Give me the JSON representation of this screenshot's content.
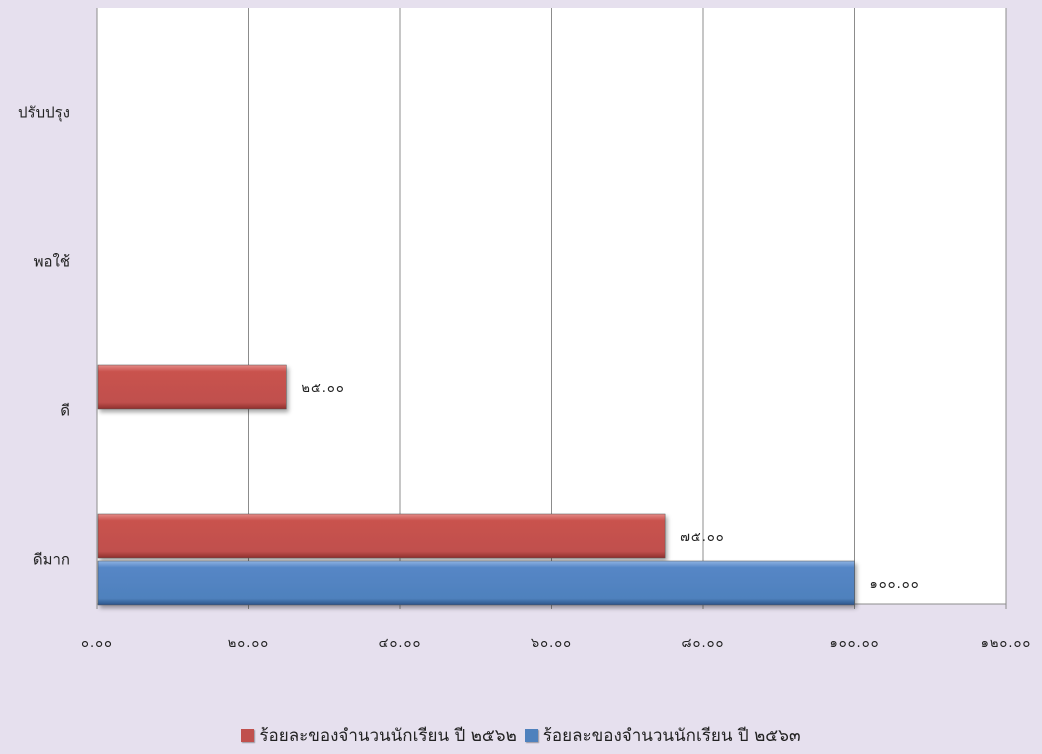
{
  "chart_data": {
    "type": "bar",
    "orientation": "horizontal",
    "categories": [
      "ปรับปรุง",
      "พอใช้",
      "ดี",
      "ดีมาก"
    ],
    "series": [
      {
        "name": "ร้อยละของจำนวนนักเรียน ปี ๒๕๖๒",
        "color": "#c0504d",
        "values": [
          null,
          null,
          25,
          75
        ],
        "labels": [
          null,
          null,
          "๒๕.๐๐",
          "๗๕.๐๐"
        ]
      },
      {
        "name": "ร้อยละของจำนวนนักเรียน ปี ๒๕๖๓",
        "color": "#4f81bd",
        "values": [
          null,
          null,
          null,
          100
        ],
        "labels": [
          null,
          null,
          null,
          "๑๐๐.๐๐"
        ]
      }
    ],
    "xlim": [
      0,
      120
    ],
    "x_ticks": [
      0,
      20,
      40,
      60,
      80,
      100,
      120
    ],
    "x_tick_labels": [
      "๐.๐๐",
      "๒๐.๐๐",
      "๔๐.๐๐",
      "๖๐.๐๐",
      "๘๐.๐๐",
      "๑๐๐.๐๐",
      "๑๒๐.๐๐"
    ],
    "grid": true,
    "legend_position": "bottom",
    "title": "",
    "xlabel": "",
    "ylabel": ""
  }
}
